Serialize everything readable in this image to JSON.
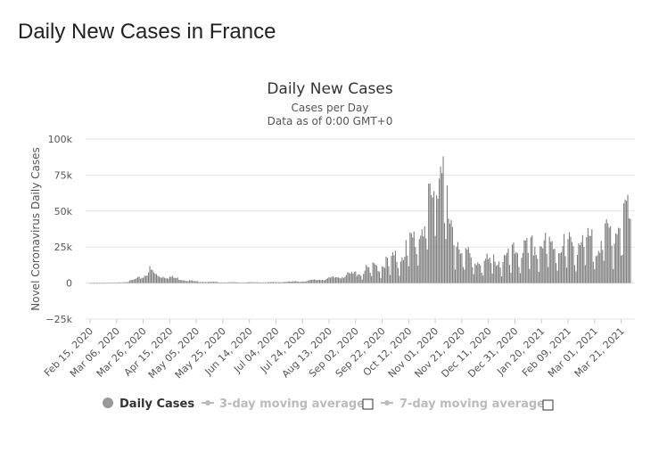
{
  "page": {
    "title": "Daily New Cases in France"
  },
  "colors": {
    "bar": "#7f7f7f",
    "grid": "#e6e6e6",
    "axis": "#cccccc",
    "text": "#333333",
    "muted": "#bbbbbb",
    "legend_active": "#999999"
  },
  "legend": {
    "items": [
      {
        "label": "Daily Cases",
        "active": true,
        "icon": "filled-circle-icon"
      },
      {
        "label": "3-day moving average",
        "active": false,
        "icon": "line-dot-icon"
      },
      {
        "label": "7-day moving average",
        "active": false,
        "icon": "line-dot-icon"
      }
    ]
  },
  "chart_data": {
    "type": "bar",
    "title": "Daily New Cases",
    "subtitle_lines": [
      "Cases per Day",
      "Data as of 0:00 GMT+0"
    ],
    "ylabel": "Novel Coronavirus Daily Cases",
    "xlabel": "",
    "ylim": [
      -25000,
      100000
    ],
    "yticks": [
      -25000,
      0,
      25000,
      50000,
      75000,
      100000
    ],
    "ytick_labels": [
      "−25k",
      "0",
      "25k",
      "50k",
      "75k",
      "100k"
    ],
    "x_start": "2020-02-15",
    "x_end": "2021-03-28",
    "xtick_labels": [
      "Feb 15, 2020",
      "Mar 06, 2020",
      "Mar 26, 2020",
      "Apr 15, 2020",
      "May 05, 2020",
      "May 25, 2020",
      "Jun 14, 2020",
      "Jul 04, 2020",
      "Jul 24, 2020",
      "Aug 13, 2020",
      "Sep 02, 2020",
      "Sep 22, 2020",
      "Oct 12, 2020",
      "Nov 01, 2020",
      "Nov 21, 2020",
      "Dec 11, 2020",
      "Dec 31, 2020",
      "Jan 20, 2021",
      "Feb 09, 2021",
      "Mar 01, 2021",
      "Mar 21, 2021"
    ],
    "grid": true,
    "legend_position": "bottom",
    "series": [
      {
        "name": "Daily Cases",
        "anchors": [
          [
            "2020-02-15",
            0
          ],
          [
            "2020-02-29",
            50
          ],
          [
            "2020-03-06",
            200
          ],
          [
            "2020-03-15",
            900
          ],
          [
            "2020-03-26",
            3500
          ],
          [
            "2020-03-31",
            7500
          ],
          [
            "2020-04-06",
            4000
          ],
          [
            "2020-04-15",
            3500
          ],
          [
            "2020-04-25",
            2000
          ],
          [
            "2020-05-05",
            900
          ],
          [
            "2020-05-25",
            400
          ],
          [
            "2020-06-14",
            400
          ],
          [
            "2020-07-04",
            500
          ],
          [
            "2020-07-24",
            1000
          ],
          [
            "2020-08-13",
            2500
          ],
          [
            "2020-09-02",
            5500
          ],
          [
            "2020-09-22",
            11000
          ],
          [
            "2020-10-05",
            15000
          ],
          [
            "2020-10-12",
            22000
          ],
          [
            "2020-10-20",
            30000
          ],
          [
            "2020-10-27",
            42000
          ],
          [
            "2020-11-01",
            48000
          ],
          [
            "2020-11-04",
            60000
          ],
          [
            "2020-11-07",
            85000
          ],
          [
            "2020-11-11",
            32000
          ],
          [
            "2020-11-16",
            27000
          ],
          [
            "2020-11-21",
            22000
          ],
          [
            "2020-11-28",
            13000
          ],
          [
            "2020-12-05",
            12000
          ],
          [
            "2020-12-15",
            13500
          ],
          [
            "2020-12-25",
            14000
          ],
          [
            "2020-12-31",
            18000
          ],
          [
            "2021-01-10",
            20000
          ],
          [
            "2021-01-20",
            22000
          ],
          [
            "2021-02-01",
            22000
          ],
          [
            "2021-02-09",
            22000
          ],
          [
            "2021-02-20",
            24000
          ],
          [
            "2021-03-01",
            23000
          ],
          [
            "2021-03-10",
            28000
          ],
          [
            "2021-03-21",
            35000
          ],
          [
            "2021-03-28",
            44000
          ]
        ]
      }
    ]
  }
}
